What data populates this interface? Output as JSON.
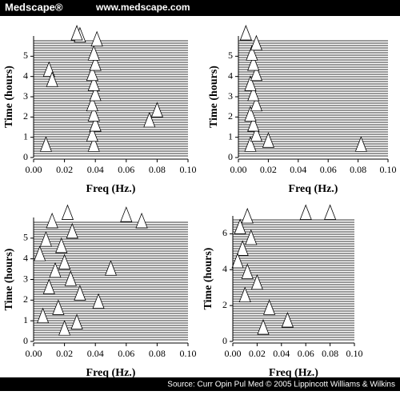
{
  "header": {
    "brand": "Medscape®",
    "url": "www.medscape.com"
  },
  "footer": {
    "source": "Source: Curr Opin Pul Med © 2005 Lippincott Williams & Wilkins"
  },
  "chart_data": [
    {
      "type": "waterfall",
      "xlabel": "Freq (Hz.)",
      "ylabel": "Time (hours)",
      "xlim": [
        0,
        0.1
      ],
      "ylim": [
        0,
        6
      ],
      "xticks": [
        {
          "value": 0,
          "label": "0.00"
        },
        {
          "value": 0.02,
          "label": "0.02"
        },
        {
          "value": 0.04,
          "label": "0.04"
        },
        {
          "value": 0.06,
          "label": "0.06"
        },
        {
          "value": 0.08,
          "label": "0.08"
        },
        {
          "value": 0.1,
          "label": "0.10"
        }
      ],
      "yticks": [
        0,
        1,
        2,
        3,
        4,
        5
      ],
      "peaks": {
        "x": [
          0.039,
          0.038,
          0.04,
          0.039,
          0.038,
          0.04,
          0.039,
          0.038,
          0.04,
          0.039,
          0.041,
          0.008,
          0.01,
          0.03,
          0.08,
          0.075,
          0.012,
          0.028
        ],
        "y": [
          0.3,
          0.8,
          1.3,
          1.8,
          2.3,
          2.8,
          3.3,
          3.8,
          4.3,
          4.8,
          5.5,
          0.3,
          4.0,
          5.7,
          2.0,
          1.5,
          3.5,
          5.8
        ]
      }
    },
    {
      "type": "waterfall",
      "xlabel": "Freq (Hz.)",
      "ylabel": "Time (hours)",
      "xlim": [
        0,
        0.1
      ],
      "ylim": [
        0,
        6
      ],
      "xticks": [
        {
          "value": 0,
          "label": "0.00"
        },
        {
          "value": 0.02,
          "label": "0.02"
        },
        {
          "value": 0.04,
          "label": "0.04"
        },
        {
          "value": 0.06,
          "label": "0.06"
        },
        {
          "value": 0.08,
          "label": "0.08"
        },
        {
          "value": 0.1,
          "label": "0.10"
        }
      ],
      "yticks": [
        0,
        1,
        2,
        3,
        4,
        5
      ],
      "peaks": {
        "x": [
          0.008,
          0.012,
          0.01,
          0.008,
          0.012,
          0.01,
          0.008,
          0.012,
          0.01,
          0.009,
          0.012,
          0.005,
          0.02,
          0.082
        ],
        "y": [
          0.3,
          0.8,
          1.3,
          1.8,
          2.3,
          2.8,
          3.3,
          3.8,
          4.3,
          4.8,
          5.3,
          5.8,
          0.5,
          0.3
        ]
      }
    },
    {
      "type": "waterfall",
      "xlabel": "Freq (Hz.)",
      "ylabel": "Time (hours)",
      "xlim": [
        0,
        0.1
      ],
      "ylim": [
        0,
        6
      ],
      "xticks": [
        {
          "value": 0,
          "label": "0.00"
        },
        {
          "value": 0.02,
          "label": "0.02"
        },
        {
          "value": 0.04,
          "label": "0.04"
        },
        {
          "value": 0.06,
          "label": "0.06"
        },
        {
          "value": 0.08,
          "label": "0.08"
        },
        {
          "value": 0.1,
          "label": "0.10"
        }
      ],
      "yticks": [
        0,
        1,
        2,
        3,
        4,
        5
      ],
      "peaks": {
        "x": [
          0.022,
          0.012,
          0.025,
          0.008,
          0.018,
          0.004,
          0.02,
          0.014,
          0.024,
          0.01,
          0.03,
          0.042,
          0.016,
          0.006,
          0.028,
          0.02,
          0.05,
          0.06,
          0.07
        ],
        "y": [
          5.9,
          5.5,
          5.0,
          4.6,
          4.3,
          3.9,
          3.5,
          3.1,
          2.7,
          2.3,
          2.0,
          1.6,
          1.3,
          0.9,
          0.6,
          0.3,
          3.2,
          5.8,
          5.5
        ]
      }
    },
    {
      "type": "waterfall",
      "xlabel": "Freq (Hz.)",
      "ylabel": "Time (hours)",
      "xlim": [
        0,
        0.1
      ],
      "ylim": [
        0,
        7
      ],
      "xticks": [
        {
          "value": 0,
          "label": "0.00"
        },
        {
          "value": 0.02,
          "label": "0.02"
        },
        {
          "value": 0.04,
          "label": "0.04"
        },
        {
          "value": 0.06,
          "label": "0.06"
        },
        {
          "value": 0.08,
          "label": "0.08"
        },
        {
          "value": 0.1,
          "label": "0.10"
        }
      ],
      "yticks": [
        0,
        2,
        4,
        6
      ],
      "peaks": {
        "x": [
          0.012,
          0.006,
          0.015,
          0.008,
          0.004,
          0.012,
          0.02,
          0.01,
          0.03,
          0.045,
          0.08,
          0.06,
          0.025
        ],
        "y": [
          6.6,
          6.0,
          5.4,
          4.8,
          4.1,
          3.5,
          2.9,
          2.2,
          1.5,
          0.8,
          6.8,
          6.8,
          0.4
        ]
      }
    }
  ]
}
